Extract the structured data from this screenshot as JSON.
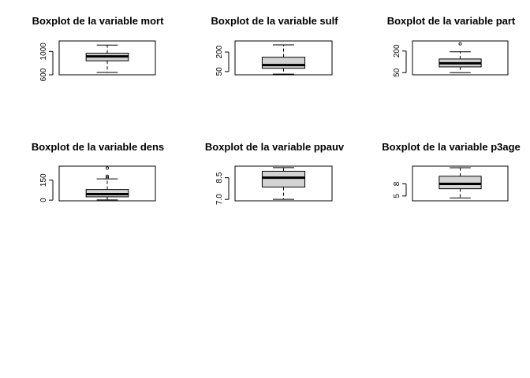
{
  "chart_data": [
    {
      "type": "boxplot",
      "title": "Boxplot de la variable mort",
      "ylim": [
        600,
        1180
      ],
      "ticks": [
        600,
        1000
      ],
      "tick_labels": [
        "600",
        "1000"
      ],
      "stats": {
        "whisker_low": 640,
        "q1": 840,
        "median": 915,
        "q3": 970,
        "whisker_high": 1110
      },
      "outliers": []
    },
    {
      "type": "boxplot",
      "title": "Boxplot de la variable sulf",
      "ylim": [
        25,
        285
      ],
      "ticks": [
        50,
        200
      ],
      "tick_labels": [
        "50",
        "200"
      ],
      "stats": {
        "whisker_low": 30,
        "q1": 75,
        "median": 100,
        "q3": 160,
        "whisker_high": 255
      },
      "outliers": []
    },
    {
      "type": "boxplot",
      "title": "Boxplot de la variable part",
      "ylim": [
        35,
        270
      ],
      "ticks": [
        50,
        200
      ],
      "tick_labels": [
        "50",
        "200"
      ],
      "stats": {
        "whisker_low": 50,
        "q1": 90,
        "median": 115,
        "q3": 145,
        "whisker_high": 195
      },
      "outliers": [
        250
      ]
    },
    {
      "type": "boxplot",
      "title": "Boxplot de la variable dens",
      "ylim": [
        -5,
        255
      ],
      "ticks": [
        0,
        150
      ],
      "tick_labels": [
        "0",
        "150"
      ],
      "stats": {
        "whisker_low": 2,
        "q1": 25,
        "median": 45,
        "q3": 80,
        "whisker_high": 160
      },
      "outliers": [
        170,
        180,
        240
      ]
    },
    {
      "type": "boxplot",
      "title": "Boxplot de la variable ppauv",
      "ylim": [
        6.9,
        9.3
      ],
      "ticks": [
        7.0,
        8.5
      ],
      "tick_labels": [
        "7.0",
        "8.5"
      ],
      "stats": {
        "whisker_low": 7.0,
        "q1": 7.85,
        "median": 8.5,
        "q3": 8.95,
        "whisker_high": 9.2
      },
      "outliers": []
    },
    {
      "type": "boxplot",
      "title": "Boxplot de la variable p3age",
      "ylim": [
        3.8,
        12.4
      ],
      "ticks": [
        5,
        8
      ],
      "tick_labels": [
        "5",
        "8"
      ],
      "stats": {
        "whisker_low": 4.5,
        "q1": 6.8,
        "median": 8.0,
        "q3": 9.9,
        "whisker_high": 12.0
      },
      "outliers": []
    }
  ]
}
